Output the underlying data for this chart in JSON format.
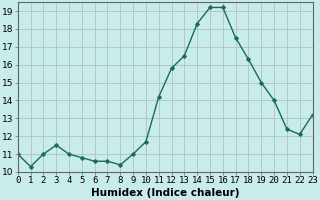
{
  "x": [
    0,
    1,
    2,
    3,
    4,
    5,
    6,
    7,
    8,
    9,
    10,
    11,
    12,
    13,
    14,
    15,
    16,
    17,
    18,
    19,
    20,
    21,
    22,
    23
  ],
  "y": [
    11,
    10.3,
    11,
    11.5,
    11,
    10.8,
    10.6,
    10.6,
    10.4,
    11,
    11.7,
    14.2,
    15.8,
    16.5,
    18.3,
    19.2,
    19.2,
    17.5,
    16.3,
    15,
    14,
    12.4,
    12.1,
    13.2
  ],
  "xlabel": "Humidex (Indice chaleur)",
  "xlim": [
    0,
    23
  ],
  "ylim": [
    10,
    19.5
  ],
  "yticks": [
    10,
    11,
    12,
    13,
    14,
    15,
    16,
    17,
    18,
    19
  ],
  "xtick_labels": [
    "0",
    "1",
    "2",
    "3",
    "4",
    "5",
    "6",
    "7",
    "8",
    "9",
    "10",
    "11",
    "12",
    "13",
    "14",
    "15",
    "16",
    "17",
    "18",
    "19",
    "20",
    "21",
    "22",
    "23"
  ],
  "line_color": "#1a6b5a",
  "marker": "D",
  "marker_size": 1.8,
  "bg_color": "#c8ece9",
  "grid_color": "#b0b8b8",
  "xlabel_fontsize": 7.5,
  "tick_fontsize": 6.5,
  "line_width": 1.0
}
